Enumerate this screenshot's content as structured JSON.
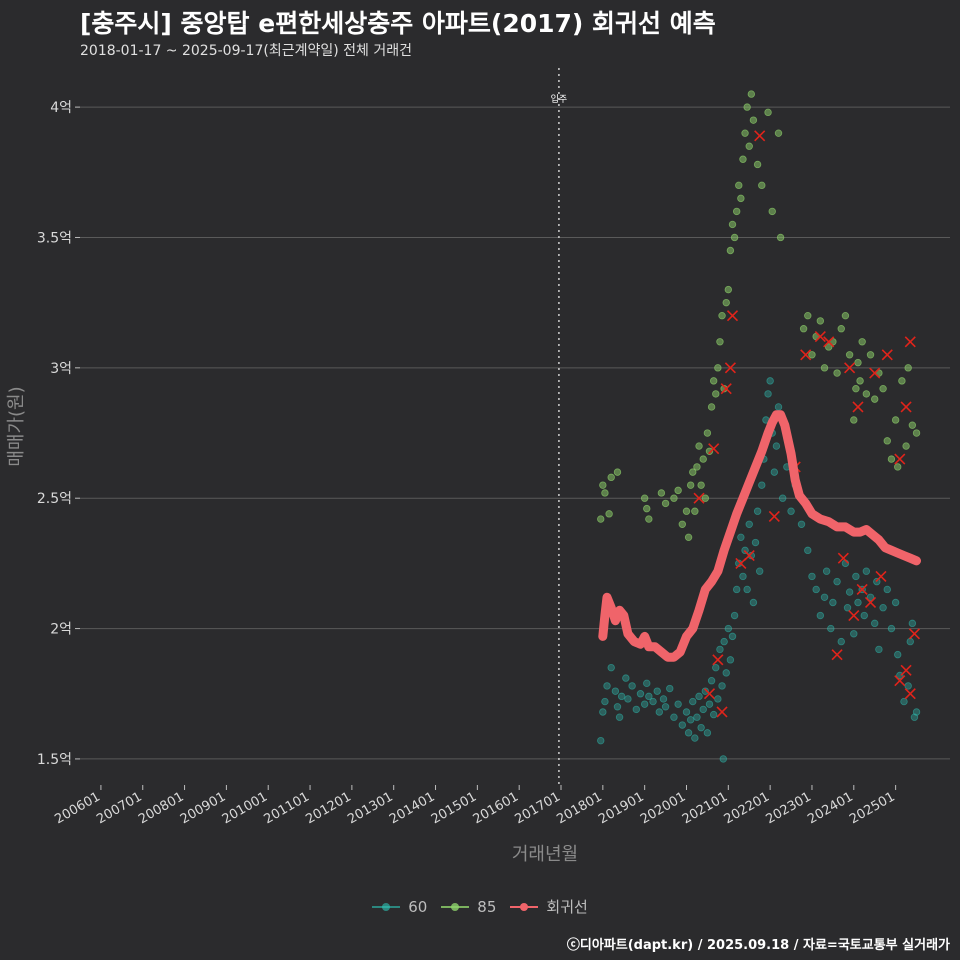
{
  "title": "[충주시] 중앙탑 e편한세상충주 아파트(2017) 회귀선 예측",
  "subtitle": "2018-01-17 ~ 2025-09-17(최근계약일) 전체 거래건",
  "caption": "ⓒ디아파트(dapt.kr) / 2025.09.18 / 자료=국토교통부 실거래가",
  "colors": {
    "background": "#2b2b2d",
    "grid": "#5a5a5a",
    "s60": "#2ec4b6",
    "s85": "#8fd36b",
    "regression": "#f0646a",
    "cross": "#e0241b"
  },
  "chart_data": {
    "type": "scatter",
    "title": "[충주시] 중앙탑 e편한세상충주 아파트(2017) 회귀선 예측",
    "subtitle": "2018-01-17 ~ 2025-09-17(최근계약일) 전체 거래건",
    "xlabel": "거래년월",
    "ylabel": "매매가(원)",
    "xlim": [
      2005.5,
      2026.3
    ],
    "ylim": [
      1.4,
      4.15
    ],
    "x_ticks": [
      "200601",
      "200701",
      "200801",
      "200901",
      "201001",
      "201101",
      "201201",
      "201301",
      "201401",
      "201501",
      "201601",
      "201701",
      "201801",
      "201901",
      "202001",
      "202101",
      "202201",
      "202301",
      "202401",
      "202501"
    ],
    "y_ticks": [
      {
        "value": 1.5,
        "label": "1.5억"
      },
      {
        "value": 2.0,
        "label": "2억"
      },
      {
        "value": 2.5,
        "label": "2.5억"
      },
      {
        "value": 3.0,
        "label": "3억"
      },
      {
        "value": 3.5,
        "label": "3.5억"
      },
      {
        "value": 4.0,
        "label": "4억"
      }
    ],
    "annotation": {
      "x": 2016.95,
      "label": "입주"
    },
    "grid": true,
    "legend_position": "bottom",
    "legend": [
      {
        "key": "60",
        "label": "60"
      },
      {
        "key": "85",
        "label": "85"
      },
      {
        "key": "reg",
        "label": "회귀선"
      }
    ],
    "series": [
      {
        "name": "60",
        "points": [
          [
            2017.95,
            1.57
          ],
          [
            2018.0,
            1.68
          ],
          [
            2018.05,
            1.72
          ],
          [
            2018.1,
            1.78
          ],
          [
            2018.2,
            1.85
          ],
          [
            2018.3,
            1.76
          ],
          [
            2018.35,
            1.7
          ],
          [
            2018.4,
            1.66
          ],
          [
            2018.45,
            1.74
          ],
          [
            2018.55,
            1.81
          ],
          [
            2018.6,
            1.73
          ],
          [
            2018.7,
            1.78
          ],
          [
            2018.8,
            1.69
          ],
          [
            2018.9,
            1.75
          ],
          [
            2019.0,
            1.71
          ],
          [
            2019.05,
            1.79
          ],
          [
            2019.1,
            1.74
          ],
          [
            2019.2,
            1.72
          ],
          [
            2019.3,
            1.76
          ],
          [
            2019.35,
            1.68
          ],
          [
            2019.45,
            1.73
          ],
          [
            2019.5,
            1.7
          ],
          [
            2019.6,
            1.77
          ],
          [
            2019.7,
            1.66
          ],
          [
            2019.8,
            1.71
          ],
          [
            2019.9,
            1.63
          ],
          [
            2020.0,
            1.68
          ],
          [
            2020.05,
            1.6
          ],
          [
            2020.1,
            1.65
          ],
          [
            2020.15,
            1.72
          ],
          [
            2020.2,
            1.58
          ],
          [
            2020.25,
            1.66
          ],
          [
            2020.3,
            1.74
          ],
          [
            2020.35,
            1.62
          ],
          [
            2020.4,
            1.69
          ],
          [
            2020.45,
            1.76
          ],
          [
            2020.5,
            1.6
          ],
          [
            2020.55,
            1.71
          ],
          [
            2020.6,
            1.8
          ],
          [
            2020.65,
            1.67
          ],
          [
            2020.7,
            1.85
          ],
          [
            2020.75,
            1.73
          ],
          [
            2020.8,
            1.92
          ],
          [
            2020.85,
            1.78
          ],
          [
            2020.9,
            1.95
          ],
          [
            2020.95,
            1.83
          ],
          [
            2021.0,
            2.0
          ],
          [
            2021.05,
            1.88
          ],
          [
            2021.1,
            1.97
          ],
          [
            2020.88,
            1.5
          ],
          [
            2021.15,
            2.05
          ],
          [
            2021.2,
            2.15
          ],
          [
            2021.25,
            2.25
          ],
          [
            2021.3,
            2.35
          ],
          [
            2021.35,
            2.2
          ],
          [
            2021.4,
            2.3
          ],
          [
            2021.45,
            2.15
          ],
          [
            2021.5,
            2.4
          ],
          [
            2021.55,
            2.28
          ],
          [
            2021.6,
            2.1
          ],
          [
            2021.65,
            2.33
          ],
          [
            2021.7,
            2.45
          ],
          [
            2021.75,
            2.22
          ],
          [
            2021.8,
            2.55
          ],
          [
            2021.85,
            2.65
          ],
          [
            2021.9,
            2.8
          ],
          [
            2021.95,
            2.9
          ],
          [
            2022.0,
            2.95
          ],
          [
            2022.05,
            2.75
          ],
          [
            2022.1,
            2.6
          ],
          [
            2022.15,
            2.7
          ],
          [
            2022.2,
            2.85
          ],
          [
            2022.3,
            2.5
          ],
          [
            2022.4,
            2.62
          ],
          [
            2022.5,
            2.45
          ],
          [
            2022.6,
            2.55
          ],
          [
            2022.75,
            2.4
          ],
          [
            2022.9,
            2.3
          ],
          [
            2023.0,
            2.2
          ],
          [
            2023.1,
            2.15
          ],
          [
            2023.2,
            2.05
          ],
          [
            2023.3,
            2.12
          ],
          [
            2023.35,
            2.22
          ],
          [
            2023.45,
            2.0
          ],
          [
            2023.5,
            2.1
          ],
          [
            2023.6,
            2.18
          ],
          [
            2023.7,
            1.95
          ],
          [
            2023.8,
            2.25
          ],
          [
            2023.85,
            2.08
          ],
          [
            2023.9,
            2.14
          ],
          [
            2024.0,
            1.98
          ],
          [
            2024.05,
            2.2
          ],
          [
            2024.1,
            2.1
          ],
          [
            2024.2,
            2.15
          ],
          [
            2024.25,
            2.05
          ],
          [
            2024.3,
            2.22
          ],
          [
            2024.4,
            2.12
          ],
          [
            2024.5,
            2.02
          ],
          [
            2024.55,
            2.18
          ],
          [
            2024.6,
            1.92
          ],
          [
            2024.7,
            2.08
          ],
          [
            2024.8,
            2.15
          ],
          [
            2024.9,
            2.0
          ],
          [
            2025.0,
            2.1
          ],
          [
            2025.05,
            1.9
          ],
          [
            2025.1,
            1.82
          ],
          [
            2025.2,
            1.72
          ],
          [
            2025.3,
            1.78
          ],
          [
            2025.35,
            1.95
          ],
          [
            2025.4,
            2.02
          ],
          [
            2025.45,
            1.66
          ],
          [
            2025.5,
            1.68
          ]
        ],
        "crosses": [
          [
            2020.55,
            1.75
          ],
          [
            2020.75,
            1.88
          ],
          [
            2020.85,
            1.68
          ],
          [
            2021.3,
            2.25
          ],
          [
            2021.5,
            2.28
          ],
          [
            2022.1,
            2.43
          ],
          [
            2022.6,
            2.62
          ],
          [
            2023.6,
            1.9
          ],
          [
            2023.75,
            2.27
          ],
          [
            2024.0,
            2.05
          ],
          [
            2024.2,
            2.15
          ],
          [
            2024.4,
            2.1
          ],
          [
            2024.65,
            2.2
          ],
          [
            2025.1,
            1.8
          ],
          [
            2025.25,
            1.84
          ],
          [
            2025.35,
            1.75
          ],
          [
            2025.45,
            1.98
          ]
        ]
      },
      {
        "name": "85",
        "points": [
          [
            2017.95,
            2.42
          ],
          [
            2018.0,
            2.55
          ],
          [
            2018.05,
            2.52
          ],
          [
            2018.15,
            2.44
          ],
          [
            2018.2,
            2.58
          ],
          [
            2018.35,
            2.6
          ],
          [
            2019.0,
            2.5
          ],
          [
            2019.05,
            2.46
          ],
          [
            2019.1,
            2.42
          ],
          [
            2019.4,
            2.52
          ],
          [
            2019.5,
            2.48
          ],
          [
            2019.7,
            2.5
          ],
          [
            2019.8,
            2.53
          ],
          [
            2019.9,
            2.4
          ],
          [
            2020.0,
            2.45
          ],
          [
            2020.05,
            2.35
          ],
          [
            2020.1,
            2.55
          ],
          [
            2020.15,
            2.6
          ],
          [
            2020.2,
            2.45
          ],
          [
            2020.25,
            2.62
          ],
          [
            2020.3,
            2.7
          ],
          [
            2020.35,
            2.55
          ],
          [
            2020.4,
            2.65
          ],
          [
            2020.45,
            2.5
          ],
          [
            2020.5,
            2.75
          ],
          [
            2020.55,
            2.68
          ],
          [
            2020.6,
            2.85
          ],
          [
            2020.65,
            2.95
          ],
          [
            2020.7,
            2.9
          ],
          [
            2020.75,
            3.0
          ],
          [
            2020.8,
            3.1
          ],
          [
            2020.85,
            3.2
          ],
          [
            2020.9,
            2.92
          ],
          [
            2020.95,
            3.25
          ],
          [
            2021.0,
            3.3
          ],
          [
            2021.05,
            3.45
          ],
          [
            2021.1,
            3.55
          ],
          [
            2021.15,
            3.5
          ],
          [
            2021.2,
            3.6
          ],
          [
            2021.25,
            3.7
          ],
          [
            2021.3,
            3.65
          ],
          [
            2021.35,
            3.8
          ],
          [
            2021.4,
            3.9
          ],
          [
            2021.45,
            4.0
          ],
          [
            2021.5,
            3.85
          ],
          [
            2021.55,
            4.05
          ],
          [
            2021.6,
            3.95
          ],
          [
            2021.7,
            3.78
          ],
          [
            2021.8,
            3.7
          ],
          [
            2021.95,
            3.98
          ],
          [
            2022.05,
            3.6
          ],
          [
            2022.2,
            3.9
          ],
          [
            2022.25,
            3.5
          ],
          [
            2022.8,
            3.15
          ],
          [
            2022.9,
            3.2
          ],
          [
            2023.0,
            3.05
          ],
          [
            2023.1,
            3.12
          ],
          [
            2023.2,
            3.18
          ],
          [
            2023.3,
            3.0
          ],
          [
            2023.4,
            3.08
          ],
          [
            2023.5,
            3.1
          ],
          [
            2023.6,
            2.98
          ],
          [
            2023.7,
            3.15
          ],
          [
            2023.8,
            3.2
          ],
          [
            2023.9,
            3.05
          ],
          [
            2024.0,
            2.8
          ],
          [
            2024.05,
            2.92
          ],
          [
            2024.1,
            3.02
          ],
          [
            2024.15,
            2.95
          ],
          [
            2024.2,
            3.1
          ],
          [
            2024.3,
            2.9
          ],
          [
            2024.4,
            3.05
          ],
          [
            2024.5,
            2.88
          ],
          [
            2024.6,
            2.98
          ],
          [
            2024.7,
            2.92
          ],
          [
            2024.8,
            2.72
          ],
          [
            2024.9,
            2.65
          ],
          [
            2025.0,
            2.8
          ],
          [
            2025.05,
            2.62
          ],
          [
            2025.15,
            2.95
          ],
          [
            2025.25,
            2.7
          ],
          [
            2025.3,
            3.0
          ],
          [
            2025.4,
            2.78
          ],
          [
            2025.5,
            2.75
          ]
        ],
        "crosses": [
          [
            2020.3,
            2.5
          ],
          [
            2020.65,
            2.69
          ],
          [
            2020.95,
            2.92
          ],
          [
            2021.05,
            3.0
          ],
          [
            2021.1,
            3.2
          ],
          [
            2021.75,
            3.89
          ],
          [
            2022.85,
            3.05
          ],
          [
            2023.2,
            3.12
          ],
          [
            2023.4,
            3.1
          ],
          [
            2023.9,
            3.0
          ],
          [
            2024.1,
            2.85
          ],
          [
            2024.5,
            2.98
          ],
          [
            2024.8,
            3.05
          ],
          [
            2025.1,
            2.65
          ],
          [
            2025.25,
            2.85
          ],
          [
            2025.35,
            3.1
          ]
        ]
      },
      {
        "name": "회귀선",
        "points": [
          [
            2018.0,
            1.97
          ],
          [
            2018.05,
            2.05
          ],
          [
            2018.1,
            2.12
          ],
          [
            2018.2,
            2.08
          ],
          [
            2018.3,
            2.03
          ],
          [
            2018.4,
            2.07
          ],
          [
            2018.5,
            2.05
          ],
          [
            2018.6,
            1.98
          ],
          [
            2018.75,
            1.95
          ],
          [
            2018.9,
            1.94
          ],
          [
            2019.0,
            1.97
          ],
          [
            2019.1,
            1.93
          ],
          [
            2019.25,
            1.93
          ],
          [
            2019.4,
            1.91
          ],
          [
            2019.55,
            1.89
          ],
          [
            2019.7,
            1.89
          ],
          [
            2019.85,
            1.91
          ],
          [
            2020.0,
            1.97
          ],
          [
            2020.15,
            2.0
          ],
          [
            2020.3,
            2.07
          ],
          [
            2020.45,
            2.15
          ],
          [
            2020.6,
            2.18
          ],
          [
            2020.75,
            2.22
          ],
          [
            2020.9,
            2.3
          ],
          [
            2021.05,
            2.37
          ],
          [
            2021.2,
            2.44
          ],
          [
            2021.35,
            2.5
          ],
          [
            2021.5,
            2.56
          ],
          [
            2021.65,
            2.62
          ],
          [
            2021.8,
            2.68
          ],
          [
            2021.95,
            2.75
          ],
          [
            2022.05,
            2.79
          ],
          [
            2022.15,
            2.82
          ],
          [
            2022.25,
            2.82
          ],
          [
            2022.35,
            2.78
          ],
          [
            2022.5,
            2.67
          ],
          [
            2022.6,
            2.57
          ],
          [
            2022.7,
            2.51
          ],
          [
            2022.85,
            2.48
          ],
          [
            2023.0,
            2.44
          ],
          [
            2023.2,
            2.42
          ],
          [
            2023.4,
            2.41
          ],
          [
            2023.6,
            2.39
          ],
          [
            2023.8,
            2.39
          ],
          [
            2024.0,
            2.37
          ],
          [
            2024.15,
            2.37
          ],
          [
            2024.3,
            2.38
          ],
          [
            2024.45,
            2.36
          ],
          [
            2024.6,
            2.34
          ],
          [
            2024.75,
            2.31
          ],
          [
            2024.9,
            2.3
          ],
          [
            2025.05,
            2.29
          ],
          [
            2025.2,
            2.28
          ],
          [
            2025.35,
            2.27
          ],
          [
            2025.5,
            2.26
          ]
        ]
      }
    ]
  }
}
